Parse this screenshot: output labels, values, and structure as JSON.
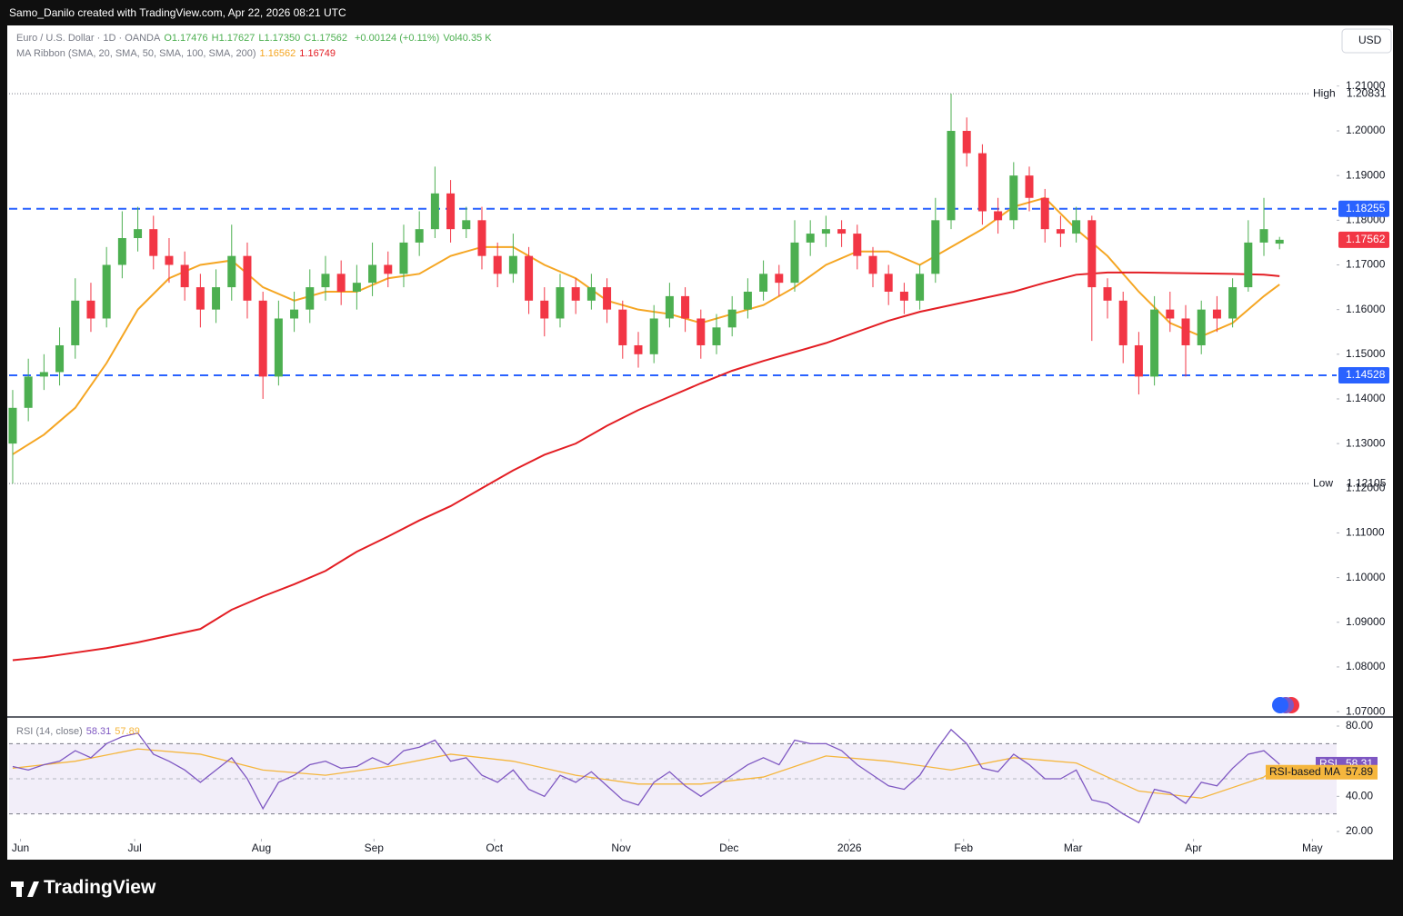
{
  "top_bar": {
    "credit": "Samo_Danilo created with TradingView.com, Apr 22, 2026 08:21 UTC"
  },
  "footer": {
    "brand": "TradingView"
  },
  "chart_data": {
    "type": "candlestick",
    "title": "Euro / U.S. Dollar · 1D · OANDA",
    "header_values": [
      "O1.17476",
      "H1.17627",
      "L1.17350",
      "C1.17562"
    ],
    "header_change": "+0.00124 (+0.11%)",
    "header_volume": "Vol40.35 K",
    "ribbon_title": "MA Ribbon (SMA, 20, SMA, 50, SMA, 100, SMA, 200)",
    "ribbon_values": [
      "1.16562",
      "1.16749"
    ],
    "currency": "USD",
    "up_color": "#4caf50",
    "down_color": "#f23645",
    "candles": {
      "open": [
        1.13,
        1.138,
        1.145,
        1.146,
        1.152,
        1.162,
        1.158,
        1.17,
        1.176,
        1.178,
        1.172,
        1.17,
        1.165,
        1.16,
        1.165,
        1.172,
        1.162,
        1.145,
        1.158,
        1.16,
        1.165,
        1.168,
        1.164,
        1.166,
        1.17,
        1.168,
        1.175,
        1.178,
        1.186,
        1.178,
        1.18,
        1.172,
        1.168,
        1.172,
        1.162,
        1.158,
        1.165,
        1.162,
        1.165,
        1.16,
        1.152,
        1.15,
        1.158,
        1.163,
        1.158,
        1.152,
        1.156,
        1.16,
        1.164,
        1.168,
        1.166,
        1.175,
        1.177,
        1.178,
        1.177,
        1.172,
        1.168,
        1.164,
        1.162,
        1.168,
        1.18,
        1.2,
        1.195,
        1.182,
        1.18,
        1.19,
        1.185,
        1.178,
        1.177,
        1.18,
        1.165,
        1.162,
        1.152,
        1.145,
        1.16,
        1.158,
        1.152,
        1.16,
        1.158,
        1.165,
        1.175,
        1.17476
      ],
      "high": [
        1.142,
        1.149,
        1.15,
        1.156,
        1.167,
        1.166,
        1.174,
        1.182,
        1.183,
        1.181,
        1.176,
        1.173,
        1.168,
        1.169,
        1.179,
        1.175,
        1.164,
        1.162,
        1.164,
        1.169,
        1.172,
        1.171,
        1.17,
        1.175,
        1.173,
        1.179,
        1.182,
        1.192,
        1.189,
        1.183,
        1.183,
        1.175,
        1.177,
        1.174,
        1.165,
        1.168,
        1.167,
        1.168,
        1.167,
        1.162,
        1.155,
        1.161,
        1.166,
        1.165,
        1.16,
        1.159,
        1.163,
        1.167,
        1.171,
        1.17,
        1.18,
        1.18,
        1.181,
        1.18,
        1.179,
        1.174,
        1.17,
        1.166,
        1.17,
        1.185,
        1.20831,
        1.203,
        1.197,
        1.185,
        1.193,
        1.192,
        1.187,
        1.181,
        1.183,
        1.181,
        1.167,
        1.164,
        1.155,
        1.163,
        1.164,
        1.161,
        1.162,
        1.163,
        1.167,
        1.18,
        1.185,
        1.17627
      ],
      "low": [
        1.12105,
        1.135,
        1.142,
        1.143,
        1.149,
        1.155,
        1.156,
        1.167,
        1.173,
        1.169,
        1.166,
        1.162,
        1.156,
        1.157,
        1.162,
        1.158,
        1.14,
        1.143,
        1.155,
        1.157,
        1.162,
        1.161,
        1.16,
        1.163,
        1.165,
        1.165,
        1.172,
        1.176,
        1.175,
        1.176,
        1.169,
        1.165,
        1.166,
        1.159,
        1.154,
        1.156,
        1.159,
        1.16,
        1.157,
        1.149,
        1.147,
        1.148,
        1.156,
        1.155,
        1.149,
        1.15,
        1.154,
        1.158,
        1.162,
        1.163,
        1.164,
        1.172,
        1.174,
        1.174,
        1.169,
        1.165,
        1.161,
        1.159,
        1.16,
        1.166,
        1.178,
        1.192,
        1.179,
        1.177,
        1.178,
        1.182,
        1.175,
        1.174,
        1.175,
        1.153,
        1.158,
        1.148,
        1.141,
        1.143,
        1.155,
        1.145,
        1.15,
        1.155,
        1.156,
        1.164,
        1.172,
        1.1735
      ],
      "close": [
        1.138,
        1.145,
        1.146,
        1.152,
        1.162,
        1.158,
        1.17,
        1.176,
        1.178,
        1.172,
        1.17,
        1.165,
        1.16,
        1.165,
        1.172,
        1.162,
        1.145,
        1.158,
        1.16,
        1.165,
        1.168,
        1.164,
        1.166,
        1.17,
        1.168,
        1.175,
        1.178,
        1.186,
        1.178,
        1.18,
        1.172,
        1.168,
        1.172,
        1.162,
        1.158,
        1.165,
        1.162,
        1.165,
        1.16,
        1.152,
        1.15,
        1.158,
        1.163,
        1.158,
        1.152,
        1.156,
        1.16,
        1.164,
        1.168,
        1.166,
        1.175,
        1.177,
        1.178,
        1.177,
        1.172,
        1.168,
        1.164,
        1.162,
        1.168,
        1.18,
        1.2,
        1.195,
        1.182,
        1.18,
        1.19,
        1.185,
        1.178,
        1.177,
        1.18,
        1.165,
        1.162,
        1.152,
        1.145,
        1.16,
        1.158,
        1.152,
        1.16,
        1.158,
        1.165,
        1.175,
        1.178,
        1.17562
      ]
    },
    "series": [
      {
        "color": "#f5a623",
        "x": [
          0,
          2,
          4,
          6,
          8,
          10,
          12,
          14,
          16,
          18,
          20,
          22,
          24,
          26,
          28,
          30,
          32,
          34,
          36,
          38,
          40,
          42,
          44,
          46,
          48,
          50,
          52,
          54,
          56,
          58,
          60,
          62,
          64,
          66,
          68,
          70,
          72,
          74,
          76,
          78,
          80,
          81
        ],
        "values": [
          1.1276,
          1.132,
          1.138,
          1.148,
          1.16,
          1.167,
          1.17,
          1.171,
          1.165,
          1.162,
          1.164,
          1.164,
          1.167,
          1.168,
          1.172,
          1.174,
          1.174,
          1.17,
          1.167,
          1.162,
          1.16,
          1.159,
          1.157,
          1.159,
          1.161,
          1.165,
          1.17,
          1.173,
          1.173,
          1.17,
          1.174,
          1.178,
          1.183,
          1.185,
          1.178,
          1.172,
          1.164,
          1.157,
          1.154,
          1.157,
          1.163,
          1.16562
        ]
      },
      {
        "color": "#e31e24",
        "x": [
          0,
          2,
          4,
          6,
          8,
          10,
          12,
          14,
          16,
          18,
          20,
          22,
          24,
          26,
          28,
          30,
          32,
          34,
          36,
          38,
          40,
          42,
          44,
          46,
          48,
          50,
          52,
          54,
          56,
          58,
          60,
          62,
          64,
          66,
          68,
          70,
          72,
          74,
          76,
          78,
          80,
          81
        ],
        "values": [
          1.0815,
          1.0822,
          1.0832,
          1.0842,
          1.0855,
          1.087,
          1.0885,
          1.0928,
          1.0958,
          1.0985,
          1.1015,
          1.1058,
          1.1092,
          1.1128,
          1.116,
          1.12,
          1.124,
          1.1275,
          1.13,
          1.134,
          1.1375,
          1.1405,
          1.1435,
          1.1463,
          1.1485,
          1.1505,
          1.1525,
          1.155,
          1.1575,
          1.1595,
          1.161,
          1.1625,
          1.164,
          1.166,
          1.1678,
          1.1683,
          1.1683,
          1.1682,
          1.1681,
          1.168,
          1.1678,
          1.16749
        ]
      }
    ],
    "levels": [
      {
        "value": 1.18255,
        "color": "#2962ff"
      },
      {
        "value": 1.14528,
        "color": "#2962ff"
      }
    ],
    "high_mark": {
      "name": "High",
      "value": 1.20831
    },
    "low_mark": {
      "name": "Low",
      "value": 1.12105
    },
    "xlim": [
      -0.23,
      84.65
    ],
    "xticks": [
      {
        "value": 0.5,
        "label": "Jun"
      },
      {
        "value": 7.8,
        "label": "Jul"
      },
      {
        "value": 15.9,
        "label": "Aug"
      },
      {
        "value": 23.1,
        "label": "Sep"
      },
      {
        "value": 30.8,
        "label": "Oct"
      },
      {
        "value": 38.9,
        "label": "Nov"
      },
      {
        "value": 45.8,
        "label": "Dec"
      },
      {
        "value": 53.5,
        "label": "2026"
      },
      {
        "value": 60.8,
        "label": "Feb"
      },
      {
        "value": 67.8,
        "label": "Mar"
      },
      {
        "value": 75.5,
        "label": "Apr"
      },
      {
        "value": 83.1,
        "label": "May"
      }
    ],
    "ylim": [
      1.069,
      1.2236
    ],
    "yticks": [
      {
        "value": 1.21,
        "label": "1.21000"
      },
      {
        "value": 1.2,
        "label": "1.20000"
      },
      {
        "value": 1.19,
        "label": "1.19000"
      },
      {
        "value": 1.18,
        "label": "1.18000"
      },
      {
        "value": 1.17,
        "label": "1.17000"
      },
      {
        "value": 1.16,
        "label": "1.16000"
      },
      {
        "value": 1.15,
        "label": "1.15000"
      },
      {
        "value": 1.14,
        "label": "1.14000"
      },
      {
        "value": 1.13,
        "label": "1.13000"
      },
      {
        "value": 1.12,
        "label": "1.12000"
      },
      {
        "value": 1.11,
        "label": "1.11000"
      },
      {
        "value": 1.1,
        "label": "1.10000"
      },
      {
        "value": 1.09,
        "label": "1.09000"
      },
      {
        "value": 1.08,
        "label": "1.08000"
      },
      {
        "value": 1.07,
        "label": "1.07000"
      }
    ],
    "rsi": {
      "title": "RSI (14, close)",
      "name": "RSI",
      "ma_name": "RSI-based MA",
      "color": "#7e57c2",
      "ma_color": "#f5b63d",
      "value_label": "58.31",
      "ma_label": "57.89",
      "values": [
        57,
        55,
        58,
        60,
        66,
        62,
        70,
        74,
        76,
        64,
        60,
        55,
        48,
        55,
        62,
        50,
        33,
        48,
        52,
        58,
        60,
        56,
        57,
        62,
        58,
        66,
        68,
        72,
        60,
        62,
        52,
        48,
        55,
        44,
        40,
        52,
        48,
        54,
        46,
        38,
        35,
        48,
        54,
        46,
        40,
        46,
        52,
        58,
        62,
        58,
        72,
        70,
        70,
        66,
        58,
        52,
        46,
        44,
        52,
        66,
        78,
        70,
        56,
        54,
        64,
        58,
        50,
        50,
        55,
        38,
        36,
        30,
        25,
        44,
        42,
        36,
        48,
        46,
        56,
        64,
        66,
        58.31
      ],
      "ma": {
        "x": [
          0,
          4,
          8,
          12,
          16,
          20,
          24,
          28,
          32,
          36,
          40,
          44,
          48,
          52,
          56,
          60,
          64,
          68,
          72,
          76,
          80,
          81
        ],
        "values": [
          56,
          60,
          67,
          64,
          55,
          52,
          57,
          64,
          60,
          52,
          47,
          47,
          51,
          63,
          60,
          55,
          62,
          59,
          43,
          39,
          51,
          57.89
        ]
      },
      "band": [
        30,
        70
      ],
      "midline": 50,
      "ylim": [
        16.38,
        84.66
      ],
      "yticks": [
        {
          "value": 80,
          "label": "80.00"
        },
        {
          "value": 40,
          "label": "40.00"
        },
        {
          "value": 20,
          "label": "20.00"
        }
      ]
    }
  }
}
